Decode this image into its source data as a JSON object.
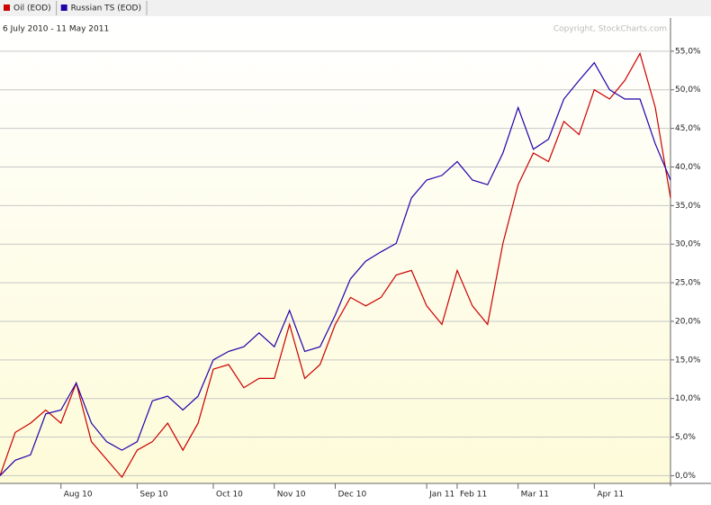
{
  "chart_data": {
    "type": "line",
    "subtitle": "6 July 2010 - 11 May 2011",
    "annotation": "Copyright, StockCharts.com",
    "categories": [
      null,
      null,
      null,
      null,
      "Aug 10",
      null,
      null,
      null,
      null,
      "Sep 10",
      null,
      null,
      null,
      null,
      "Oct 10",
      null,
      null,
      null,
      "Nov 10",
      null,
      null,
      null,
      "Dec 10",
      null,
      null,
      null,
      null,
      null,
      "Jan 11",
      null,
      "Feb 11",
      null,
      null,
      null,
      "Mar 11",
      null,
      null,
      null,
      null,
      "Apr 11",
      null,
      null,
      null,
      null,
      null
    ],
    "series": [
      {
        "name": "Oil (EOD)",
        "color": "#cc0000",
        "values": [
          0,
          5.6,
          6.8,
          8.5,
          6.8,
          12,
          4.4,
          2.1,
          -0.2,
          3.3,
          4.4,
          6.8,
          3.3,
          6.8,
          13.8,
          14.4,
          11.4,
          12.6,
          12.6,
          19.6,
          12.6,
          14.4,
          19.6,
          23.1,
          22,
          23.1,
          26,
          26.6,
          22,
          19.6,
          26.6,
          22,
          19.6,
          30.1,
          37.7,
          41.8,
          40.7,
          45.9,
          44.2,
          50,
          48.8,
          51.2,
          54.7,
          47.7,
          36
        ]
      },
      {
        "name": "Russian TS (EOD)",
        "color": "#2200aa",
        "values": [
          0,
          2,
          2.7,
          8,
          8.5,
          12,
          6.8,
          4.4,
          3.3,
          4.4,
          9.7,
          10.3,
          8.5,
          10.3,
          15,
          16.1,
          16.7,
          18.5,
          16.7,
          21.4,
          16.1,
          16.7,
          20.8,
          25.5,
          27.8,
          29,
          30.1,
          36,
          38.3,
          38.9,
          40.7,
          38.3,
          37.7,
          41.8,
          47.7,
          42.3,
          43.6,
          48.8,
          51.2,
          53.5,
          50,
          48.8,
          48.8,
          43,
          38.3
        ]
      }
    ],
    "ylim": [
      -1,
      59.3
    ],
    "yticks": [
      {
        "value": 0,
        "label": "0,0%"
      },
      {
        "value": 5,
        "label": "5,0%"
      },
      {
        "value": 10,
        "label": "10,0%"
      },
      {
        "value": 15,
        "label": "15,0%"
      },
      {
        "value": 20,
        "label": "20,0%"
      },
      {
        "value": 25,
        "label": "25,0%"
      },
      {
        "value": 30,
        "label": "30,0%"
      },
      {
        "value": 35,
        "label": "35,0%"
      },
      {
        "value": 40,
        "label": "40,0%"
      },
      {
        "value": 45,
        "label": "45,0%"
      },
      {
        "value": 50,
        "label": "50,0%"
      },
      {
        "value": 55,
        "label": "55,0%"
      }
    ],
    "grid": true
  }
}
